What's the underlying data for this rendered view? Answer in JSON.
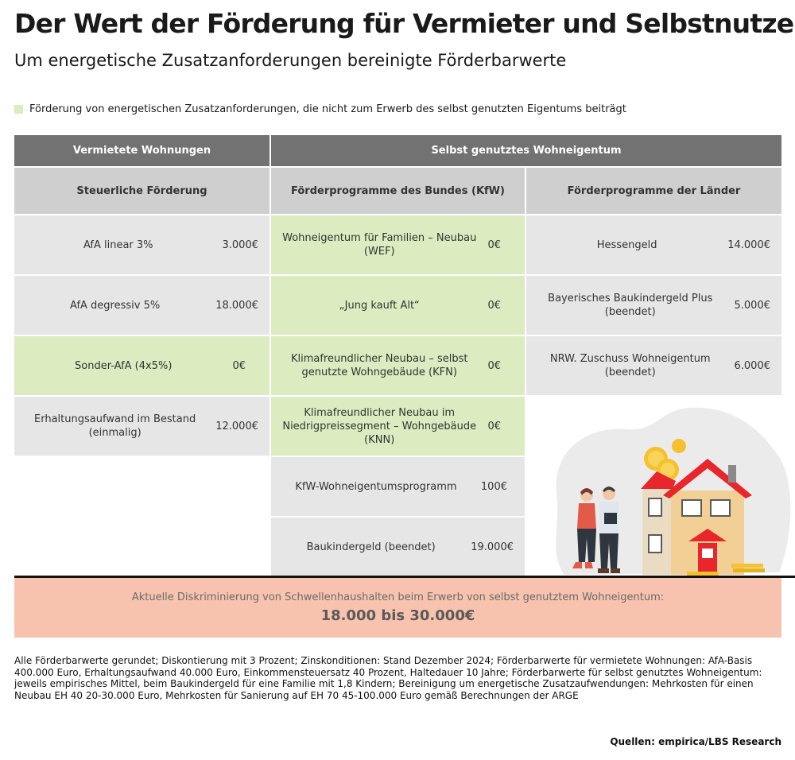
{
  "header": {
    "title": "Der Wert der Förderung für Vermieter und Selbstnutzer",
    "subtitle": "Um energetische Zusatzanforderungen bereinigte Förderbarwerte"
  },
  "legend": {
    "label": "Förderung von energetischen Zusatzanforderungen, die nicht zum Erwerb des selbst genutzten Eigentums beiträgt",
    "color": "#dcebc0"
  },
  "table": {
    "group_headers": [
      "Vermietete Wohnungen",
      "Selbst genutztes Wohneigentum"
    ],
    "column_headers": [
      "Steuerliche Förderung",
      "Förderprogramme des Bundes (KfW)",
      "Förderprogramme der Länder"
    ],
    "columns": [
      {
        "rows": [
          {
            "label": "AfA linear 3%",
            "value": "3.000€",
            "green": false
          },
          {
            "label": "AfA degressiv 5%",
            "value": "18.000€",
            "green": false
          },
          {
            "label": "Sonder-AfA (4x5%)",
            "value": "0€",
            "green": true
          },
          {
            "label": "Erhaltungsaufwand im Bestand (einmalig)",
            "value": "12.000€",
            "green": false
          }
        ]
      },
      {
        "rows": [
          {
            "label": "Wohneigentum für Familien – Neubau (WEF)",
            "value": "0€",
            "green": true
          },
          {
            "label": "„Jung kauft Alt“",
            "value": "0€",
            "green": true
          },
          {
            "label": "Klimafreundlicher Neubau – selbst genutzte Wohngebäude (KFN)",
            "value": "0€",
            "green": true
          },
          {
            "label": "Klimafreundlicher Neubau im Niedrigpreissegment – Wohngebäude (KNN)",
            "value": "0€",
            "green": true
          },
          {
            "label": "KfW-Wohneigentumsprogramm",
            "value": "100€",
            "green": false
          },
          {
            "label": "Baukindergeld (beendet)",
            "value": "19.000€",
            "green": false
          }
        ]
      },
      {
        "rows": [
          {
            "label": "Hessengeld",
            "value": "14.000€",
            "green": false
          },
          {
            "label": "Bayerisches Baukindergeld Plus (beendet)",
            "value": "5.000€",
            "green": false
          },
          {
            "label": "NRW. Zuschuss Wohneigentum (beendet)",
            "value": "6.000€",
            "green": false
          }
        ]
      }
    ]
  },
  "discrimination": {
    "text": "Aktuelle Diskriminierung von Schwellenhaushalten beim Erwerb von selbst genutztem Wohneigentum:",
    "value": "18.000 bis 30.000€"
  },
  "footnote": "Alle Förderbarwerte gerundet; Diskontierung mit 3 Prozent; Zinskonditionen: Stand Dezember 2024; Förderbarwerte für vermietete Wohnungen: AfA-Basis 400.000 Euro, Erhaltungsaufwand 40.000 Euro, Einkommensteuersatz 40 Prozent, Haltedauer 10 Jahre; Förderbarwerte für selbst genutztes Wohneigentum: jeweils empirisches Mittel, beim Baukindergeld für eine Familie mit 1,8 Kindern; Bereinigung um energetische Zusatzaufwendungen: Mehrkosten für einen Neubau EH 40 20-30.000 Euro, Mehrkosten für Sanierung auf EH 70 45-100.000 Euro gemäß Berechnungen der ARGE",
  "source": "Quellen: empirica/LBS Research",
  "illustration": {
    "icon": "couple-house-coins-illustration",
    "colors": {
      "roof": "#e8262c",
      "wall": "#f1cf95",
      "coin": "#f6c12e",
      "blob": "#ebebeb"
    }
  }
}
